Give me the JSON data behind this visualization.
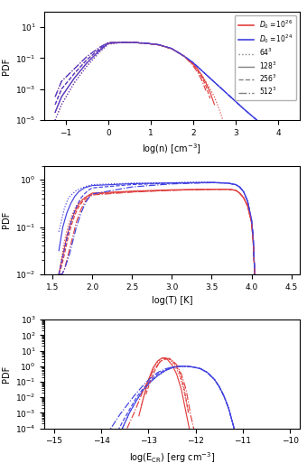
{
  "red_color": "#e04040",
  "blue_color": "#4040e0",
  "line_styles_order": [
    "dotted",
    "solid",
    "dashed",
    "dashdot"
  ],
  "panel1": {
    "xlabel": "log(n) [cm$^{-3}$]",
    "ylabel": "PDF",
    "xlim": [
      -1.5,
      4.5
    ],
    "ylim": [
      1e-05,
      100.0
    ],
    "xticks": [
      -1,
      0,
      1,
      2,
      3,
      4
    ],
    "red_curves": [
      {
        "x": [
          -1.25,
          -1.1,
          -0.8,
          -0.5,
          -0.2,
          0.0,
          0.3,
          0.6,
          0.9,
          1.2,
          1.5,
          1.8,
          2.0,
          2.1,
          2.2,
          2.3,
          2.4,
          2.5,
          2.6,
          2.7
        ],
        "y": [
          -5.0,
          -4.0,
          -2.6,
          -1.5,
          -0.6,
          -0.1,
          0.0,
          0.0,
          -0.05,
          -0.15,
          -0.4,
          -0.9,
          -1.4,
          -1.7,
          -2.1,
          -2.5,
          -3.0,
          -3.5,
          -4.2,
          -5.0
        ]
      },
      {
        "x": [
          -1.25,
          -1.1,
          -0.8,
          -0.5,
          -0.2,
          0.0,
          0.3,
          0.6,
          0.9,
          1.2,
          1.5,
          1.8,
          2.0,
          2.1,
          2.2,
          2.3,
          2.4,
          2.5
        ],
        "y": [
          -4.5,
          -3.5,
          -2.3,
          -1.3,
          -0.5,
          -0.05,
          0.0,
          0.0,
          -0.05,
          -0.15,
          -0.4,
          -0.9,
          -1.4,
          -1.7,
          -2.1,
          -2.6,
          -3.2,
          -4.0
        ]
      },
      {
        "x": [
          -1.25,
          -1.1,
          -0.8,
          -0.5,
          -0.2,
          0.0,
          0.3,
          0.6,
          0.9,
          1.2,
          1.5,
          1.8,
          2.0,
          2.1,
          2.2,
          2.3,
          2.4
        ],
        "y": [
          -4.0,
          -3.0,
          -2.0,
          -1.1,
          -0.4,
          -0.02,
          0.0,
          0.0,
          -0.05,
          -0.15,
          -0.4,
          -0.9,
          -1.4,
          -1.8,
          -2.2,
          -2.8,
          -3.6
        ]
      },
      {
        "x": [
          -1.25,
          -1.1,
          -0.8,
          -0.5,
          -0.2,
          0.0,
          0.3,
          0.6,
          0.9,
          1.2,
          1.5,
          1.8,
          2.0,
          2.1,
          2.2,
          2.3
        ],
        "y": [
          -3.5,
          -2.5,
          -1.7,
          -0.9,
          -0.3,
          0.0,
          0.02,
          0.02,
          -0.03,
          -0.15,
          -0.4,
          -0.9,
          -1.5,
          -1.9,
          -2.4,
          -3.1
        ]
      }
    ],
    "blue_curves": [
      {
        "x": [
          -1.25,
          -1.1,
          -0.8,
          -0.5,
          -0.2,
          0.0,
          0.3,
          0.6,
          0.9,
          1.2,
          1.5,
          1.8,
          2.0,
          2.2,
          2.4,
          2.6,
          2.8,
          3.0,
          3.2,
          3.5,
          3.8,
          4.0,
          4.1
        ],
        "y": [
          -5.0,
          -4.0,
          -2.6,
          -1.5,
          -0.6,
          -0.1,
          0.0,
          0.0,
          -0.05,
          -0.15,
          -0.4,
          -0.9,
          -1.3,
          -1.8,
          -2.3,
          -2.8,
          -3.3,
          -3.8,
          -4.3,
          -5.0,
          -5.5,
          -6.0,
          -6.5
        ]
      },
      {
        "x": [
          -1.25,
          -1.1,
          -0.8,
          -0.5,
          -0.2,
          0.0,
          0.3,
          0.6,
          0.9,
          1.2,
          1.5,
          1.8,
          2.0,
          2.2,
          2.4,
          2.6,
          2.8,
          3.0,
          3.2,
          3.5,
          3.8,
          4.0
        ],
        "y": [
          -4.5,
          -3.5,
          -2.3,
          -1.3,
          -0.5,
          -0.05,
          0.0,
          0.0,
          -0.05,
          -0.15,
          -0.4,
          -0.9,
          -1.3,
          -1.8,
          -2.3,
          -2.8,
          -3.3,
          -3.8,
          -4.3,
          -5.0,
          -5.5,
          -6.0
        ]
      },
      {
        "x": [
          -1.25,
          -1.1,
          -0.8,
          -0.5,
          -0.2,
          0.0,
          0.3,
          0.6,
          0.9,
          1.2,
          1.5,
          1.8,
          2.0,
          2.2,
          2.4,
          2.6,
          2.8,
          3.0,
          3.2,
          3.5,
          3.8
        ],
        "y": [
          -4.0,
          -3.0,
          -2.0,
          -1.1,
          -0.4,
          -0.02,
          0.0,
          0.0,
          -0.05,
          -0.15,
          -0.4,
          -0.9,
          -1.3,
          -1.8,
          -2.3,
          -2.8,
          -3.3,
          -3.8,
          -4.3,
          -5.0,
          -5.5
        ]
      },
      {
        "x": [
          -1.25,
          -1.1,
          -0.8,
          -0.5,
          -0.2,
          0.0,
          0.3,
          0.6,
          0.9,
          1.2,
          1.5,
          1.8,
          2.0,
          2.2,
          2.4,
          2.6,
          2.8,
          3.0,
          3.2,
          3.5
        ],
        "y": [
          -3.5,
          -2.5,
          -1.7,
          -0.9,
          -0.3,
          0.0,
          0.02,
          0.02,
          -0.03,
          -0.13,
          -0.38,
          -0.9,
          -1.3,
          -1.8,
          -2.3,
          -2.8,
          -3.3,
          -3.8,
          -4.3,
          -5.0
        ]
      }
    ]
  },
  "panel2": {
    "xlabel": "log(T) [K]",
    "ylabel": "PDF",
    "xlim": [
      1.4,
      4.6
    ],
    "ylim": [
      0.01,
      2.0
    ],
    "xticks": [
      1.5,
      2.0,
      2.5,
      3.0,
      3.5,
      4.0,
      4.5
    ],
    "red_curves": [
      {
        "x": [
          1.58,
          1.65,
          1.7,
          1.75,
          1.8,
          1.85,
          1.9,
          2.0,
          2.5,
          3.0,
          3.5,
          3.7,
          3.8,
          3.85,
          3.9,
          3.95,
          4.0,
          4.02,
          4.04
        ],
        "y": [
          -2.0,
          -1.3,
          -0.95,
          -0.72,
          -0.55,
          -0.45,
          -0.38,
          -0.3,
          -0.25,
          -0.22,
          -0.2,
          -0.2,
          -0.22,
          -0.28,
          -0.38,
          -0.55,
          -0.9,
          -1.3,
          -2.0
        ]
      },
      {
        "x": [
          1.58,
          1.63,
          1.68,
          1.73,
          1.78,
          1.83,
          1.88,
          1.93,
          2.0,
          2.5,
          3.0,
          3.5,
          3.7,
          3.8,
          3.85,
          3.9,
          3.95,
          4.0,
          4.02,
          4.04
        ],
        "y": [
          -2.0,
          -1.6,
          -1.2,
          -0.9,
          -0.68,
          -0.52,
          -0.42,
          -0.35,
          -0.28,
          -0.24,
          -0.21,
          -0.2,
          -0.2,
          -0.22,
          -0.28,
          -0.38,
          -0.55,
          -0.9,
          -1.3,
          -2.0
        ]
      },
      {
        "x": [
          1.58,
          1.62,
          1.66,
          1.7,
          1.74,
          1.78,
          1.82,
          1.86,
          1.9,
          1.95,
          2.0,
          2.5,
          3.0,
          3.5,
          3.7,
          3.8,
          3.85,
          3.9,
          3.95,
          4.0,
          4.02,
          4.04
        ],
        "y": [
          -2.0,
          -1.8,
          -1.5,
          -1.2,
          -0.95,
          -0.75,
          -0.6,
          -0.5,
          -0.42,
          -0.36,
          -0.3,
          -0.25,
          -0.22,
          -0.2,
          -0.2,
          -0.22,
          -0.28,
          -0.38,
          -0.55,
          -0.9,
          -1.3,
          -2.0
        ]
      },
      {
        "x": [
          1.58,
          1.62,
          1.65,
          1.68,
          1.71,
          1.74,
          1.77,
          1.8,
          1.83,
          1.86,
          1.89,
          1.92,
          1.96,
          2.0,
          2.5,
          3.0,
          3.5,
          3.7,
          3.8,
          3.85,
          3.9,
          3.95,
          4.0,
          4.02,
          4.04
        ],
        "y": [
          -2.0,
          -2.0,
          -1.9,
          -1.7,
          -1.5,
          -1.3,
          -1.1,
          -0.9,
          -0.75,
          -0.62,
          -0.52,
          -0.44,
          -0.37,
          -0.32,
          -0.26,
          -0.22,
          -0.2,
          -0.2,
          -0.22,
          -0.28,
          -0.38,
          -0.55,
          -0.9,
          -1.3,
          -2.0
        ]
      }
    ],
    "blue_curves": [
      {
        "x": [
          1.58,
          1.65,
          1.7,
          1.8,
          1.9,
          2.0,
          2.5,
          3.0,
          3.2,
          3.5,
          3.7,
          3.8,
          3.85,
          3.9,
          3.95,
          4.0,
          4.02,
          4.04
        ],
        "y": [
          -1.1,
          -0.6,
          -0.38,
          -0.22,
          -0.15,
          -0.1,
          -0.07,
          -0.06,
          -0.05,
          -0.05,
          -0.07,
          -0.1,
          -0.15,
          -0.25,
          -0.45,
          -0.85,
          -1.2,
          -2.0
        ]
      },
      {
        "x": [
          1.58,
          1.63,
          1.68,
          1.73,
          1.78,
          1.83,
          1.9,
          2.0,
          2.5,
          3.0,
          3.2,
          3.5,
          3.7,
          3.8,
          3.85,
          3.9,
          3.95,
          4.0,
          4.02,
          4.04
        ],
        "y": [
          -1.5,
          -1.0,
          -0.7,
          -0.5,
          -0.35,
          -0.25,
          -0.17,
          -0.12,
          -0.08,
          -0.065,
          -0.06,
          -0.055,
          -0.07,
          -0.1,
          -0.15,
          -0.25,
          -0.45,
          -0.85,
          -1.2,
          -2.0
        ]
      },
      {
        "x": [
          1.58,
          1.62,
          1.66,
          1.7,
          1.74,
          1.78,
          1.82,
          1.86,
          1.9,
          1.95,
          2.0,
          2.5,
          3.0,
          3.2,
          3.5,
          3.7,
          3.8,
          3.85,
          3.9,
          3.95,
          4.0,
          4.02,
          4.04
        ],
        "y": [
          -2.0,
          -1.7,
          -1.4,
          -1.1,
          -0.85,
          -0.65,
          -0.5,
          -0.38,
          -0.3,
          -0.22,
          -0.17,
          -0.1,
          -0.07,
          -0.065,
          -0.055,
          -0.065,
          -0.1,
          -0.15,
          -0.25,
          -0.45,
          -0.85,
          -1.2,
          -2.0
        ]
      },
      {
        "x": [
          1.58,
          1.62,
          1.65,
          1.68,
          1.71,
          1.74,
          1.77,
          1.8,
          1.83,
          1.86,
          1.89,
          1.92,
          1.96,
          2.0,
          2.5,
          3.0,
          3.2,
          3.5,
          3.7,
          3.8,
          3.85,
          3.9,
          3.95,
          4.0,
          4.02,
          4.04
        ],
        "y": [
          -2.0,
          -2.0,
          -1.9,
          -1.75,
          -1.6,
          -1.4,
          -1.2,
          -1.0,
          -0.85,
          -0.7,
          -0.58,
          -0.47,
          -0.37,
          -0.3,
          -0.15,
          -0.085,
          -0.075,
          -0.06,
          -0.07,
          -0.1,
          -0.15,
          -0.25,
          -0.45,
          -0.85,
          -1.2,
          -2.0
        ]
      }
    ]
  },
  "panel3": {
    "xlabel": "log(E$_{\\mathrm{CR}}$) [erg cm$^{-3}$]",
    "ylabel": "PDF",
    "xlim": [
      -15.2,
      -9.8
    ],
    "ylim": [
      0.0001,
      1000.0
    ],
    "xticks": [
      -15,
      -14,
      -13,
      -12,
      -11,
      -10
    ],
    "red_curves": [
      {
        "x": [
          -13.15,
          -13.05,
          -12.95,
          -12.85,
          -12.75,
          -12.65,
          -12.55,
          -12.45,
          -12.35,
          -12.25,
          -12.15
        ],
        "y": [
          -2.5,
          -1.5,
          -0.6,
          0.1,
          0.45,
          0.55,
          0.45,
          0.1,
          -0.5,
          -1.5,
          -3.0
        ]
      },
      {
        "x": [
          -13.2,
          -13.1,
          -13.0,
          -12.9,
          -12.8,
          -12.7,
          -12.6,
          -12.5,
          -12.4,
          -12.3,
          -12.2,
          -12.1
        ],
        "y": [
          -3.2,
          -2.0,
          -0.9,
          -0.1,
          0.35,
          0.55,
          0.45,
          0.1,
          -0.5,
          -1.5,
          -3.0,
          -4.5
        ]
      },
      {
        "x": [
          -13.05,
          -12.95,
          -12.85,
          -12.75,
          -12.65,
          -12.55,
          -12.45,
          -12.35,
          -12.25,
          -12.15
        ],
        "y": [
          -1.8,
          -0.9,
          -0.2,
          0.3,
          0.55,
          0.5,
          0.2,
          -0.3,
          -1.3,
          -3.0
        ]
      },
      {
        "x": [
          -13.45,
          -13.3,
          -13.1,
          -12.9,
          -12.75,
          -12.6,
          -12.5,
          -12.4,
          -12.3,
          -12.2,
          -12.1,
          -12.0,
          -11.95
        ],
        "y": [
          -4.0,
          -3.0,
          -1.5,
          -0.3,
          0.3,
          0.5,
          0.4,
          0.1,
          -0.5,
          -1.5,
          -3.2,
          -4.5,
          -5.0
        ]
      }
    ],
    "blue_curves": [
      {
        "x": [
          -13.55,
          -13.4,
          -13.25,
          -13.1,
          -12.95,
          -12.8,
          -12.65,
          -12.5,
          -12.35,
          -12.2,
          -12.05,
          -11.9,
          -11.75,
          -11.6,
          -11.5,
          -11.4,
          -11.3,
          -11.2,
          -11.15
        ],
        "y": [
          -4.0,
          -3.0,
          -2.2,
          -1.5,
          -1.0,
          -0.6,
          -0.3,
          -0.1,
          0.0,
          0.0,
          -0.05,
          -0.15,
          -0.4,
          -0.85,
          -1.3,
          -1.9,
          -2.7,
          -3.8,
          -4.5
        ]
      },
      {
        "x": [
          -13.55,
          -13.4,
          -13.25,
          -13.1,
          -12.95,
          -12.8,
          -12.65,
          -12.5,
          -12.35,
          -12.2,
          -12.05,
          -11.9,
          -11.75,
          -11.6,
          -11.5,
          -11.4,
          -11.3,
          -11.2,
          -11.15
        ],
        "y": [
          -4.0,
          -3.0,
          -2.2,
          -1.5,
          -1.0,
          -0.6,
          -0.3,
          -0.1,
          0.0,
          0.0,
          -0.05,
          -0.15,
          -0.4,
          -0.85,
          -1.3,
          -1.9,
          -2.7,
          -3.8,
          -4.5
        ]
      },
      {
        "x": [
          -13.7,
          -13.55,
          -13.4,
          -13.25,
          -13.1,
          -12.95,
          -12.8,
          -12.65,
          -12.5,
          -12.35,
          -12.2,
          -12.05,
          -11.9,
          -11.75,
          -11.6,
          -11.5,
          -11.4,
          -11.3,
          -11.2,
          -11.15
        ],
        "y": [
          -4.5,
          -3.6,
          -2.8,
          -2.0,
          -1.4,
          -0.9,
          -0.5,
          -0.25,
          -0.08,
          0.0,
          0.0,
          -0.05,
          -0.15,
          -0.4,
          -0.85,
          -1.3,
          -1.9,
          -2.7,
          -3.8,
          -4.5
        ]
      },
      {
        "x": [
          -13.9,
          -13.75,
          -13.6,
          -13.45,
          -13.3,
          -13.1,
          -12.95,
          -12.8,
          -12.65,
          -12.5,
          -12.35,
          -12.2,
          -12.05,
          -11.9,
          -11.75,
          -11.6,
          -11.5,
          -11.4,
          -11.3,
          -11.2,
          -11.15
        ],
        "y": [
          -4.5,
          -3.8,
          -3.1,
          -2.5,
          -1.9,
          -1.2,
          -0.75,
          -0.4,
          -0.18,
          -0.05,
          0.0,
          0.0,
          -0.05,
          -0.15,
          -0.4,
          -0.85,
          -1.3,
          -1.9,
          -2.7,
          -3.8,
          -4.5
        ]
      }
    ]
  },
  "legend": {
    "D0_26_label": "$D_0 = 10^{26}$",
    "D0_24_label": "$D_0 = 10^{24}$",
    "res_labels": [
      "$64^3$",
      "$128^3$",
      "$256^3$",
      "$512^3$"
    ],
    "res_styles": [
      "dotted",
      "solid",
      "dashed",
      "dashdot"
    ]
  }
}
